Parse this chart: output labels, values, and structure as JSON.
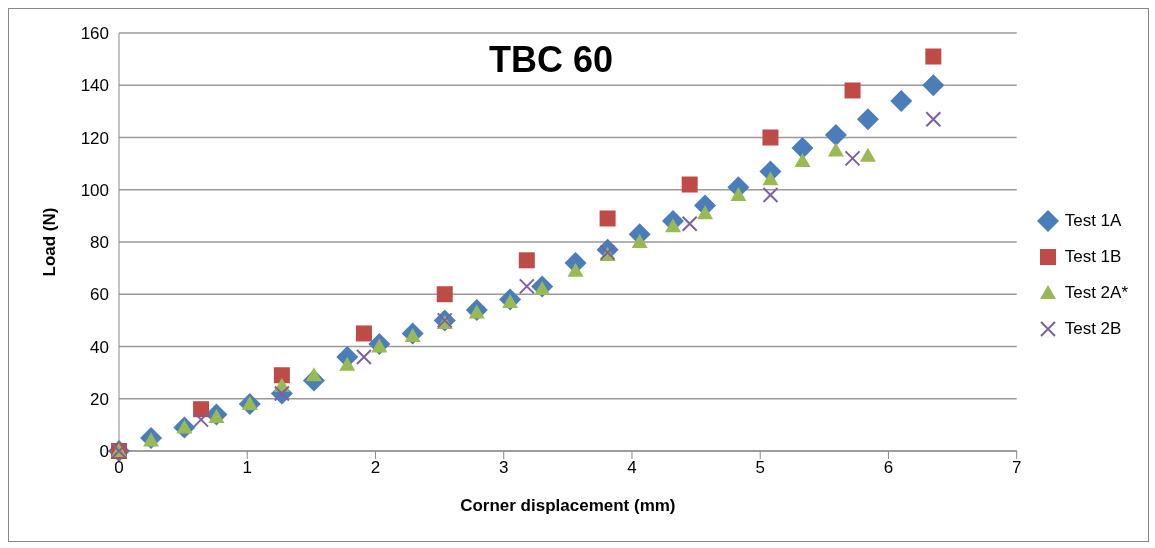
{
  "chart_data": {
    "type": "scatter",
    "title": "TBC 60",
    "xlabel": "Corner displacement (mm)",
    "ylabel": "Load (N)",
    "xlim": [
      0,
      7
    ],
    "xticks": [
      0,
      1,
      2,
      3,
      4,
      5,
      6,
      7
    ],
    "ylim": [
      0,
      160
    ],
    "yticks": [
      0,
      20,
      40,
      60,
      80,
      100,
      120,
      140,
      160
    ],
    "grid": "y",
    "legend": "right",
    "series": [
      {
        "name": "Test 1A",
        "color": "#4a7ebb",
        "marker": "diamond",
        "x": [
          0,
          0.25,
          0.51,
          0.76,
          1.02,
          1.27,
          1.52,
          1.78,
          2.03,
          2.29,
          2.54,
          2.79,
          3.05,
          3.3,
          3.56,
          3.81,
          4.06,
          4.32,
          4.57,
          4.83,
          5.08,
          5.33,
          5.59,
          5.84,
          6.1,
          6.35
        ],
        "values": [
          0,
          5,
          9,
          14,
          18,
          22,
          27,
          36,
          41,
          45,
          50,
          54,
          58,
          63,
          72,
          77,
          83,
          88,
          94,
          101,
          107,
          116,
          121,
          127,
          134,
          140
        ]
      },
      {
        "name": "Test 1B",
        "color": "#be4b48",
        "marker": "square",
        "x": [
          0,
          0.64,
          1.27,
          1.91,
          2.54,
          3.18,
          3.81,
          4.45,
          5.08,
          5.72,
          6.35
        ],
        "values": [
          0,
          16,
          29,
          45,
          60,
          73,
          89,
          102,
          120,
          138,
          151
        ]
      },
      {
        "name": "Test 2A*",
        "color": "#98b954",
        "marker": "triangle",
        "x": [
          0,
          0.25,
          0.51,
          0.76,
          1.02,
          1.27,
          1.52,
          1.78,
          2.03,
          2.29,
          2.54,
          2.79,
          3.05,
          3.3,
          3.56,
          3.81,
          4.06,
          4.32,
          4.57,
          4.83,
          5.08,
          5.33,
          5.59,
          5.84
        ],
        "values": [
          0,
          4,
          9,
          13,
          18,
          25,
          29,
          33,
          40,
          44,
          49,
          53,
          57,
          62,
          69,
          75,
          80,
          86,
          91,
          98,
          104,
          111,
          115,
          113
        ]
      },
      {
        "name": "Test 2B",
        "color": "#7d60a0",
        "marker": "cross",
        "x": [
          0,
          0.64,
          1.27,
          1.91,
          2.54,
          3.18,
          3.81,
          4.45,
          5.08,
          5.72,
          6.35
        ],
        "values": [
          0,
          12,
          22,
          36,
          50,
          63,
          76,
          87,
          98,
          112,
          127
        ]
      }
    ]
  }
}
